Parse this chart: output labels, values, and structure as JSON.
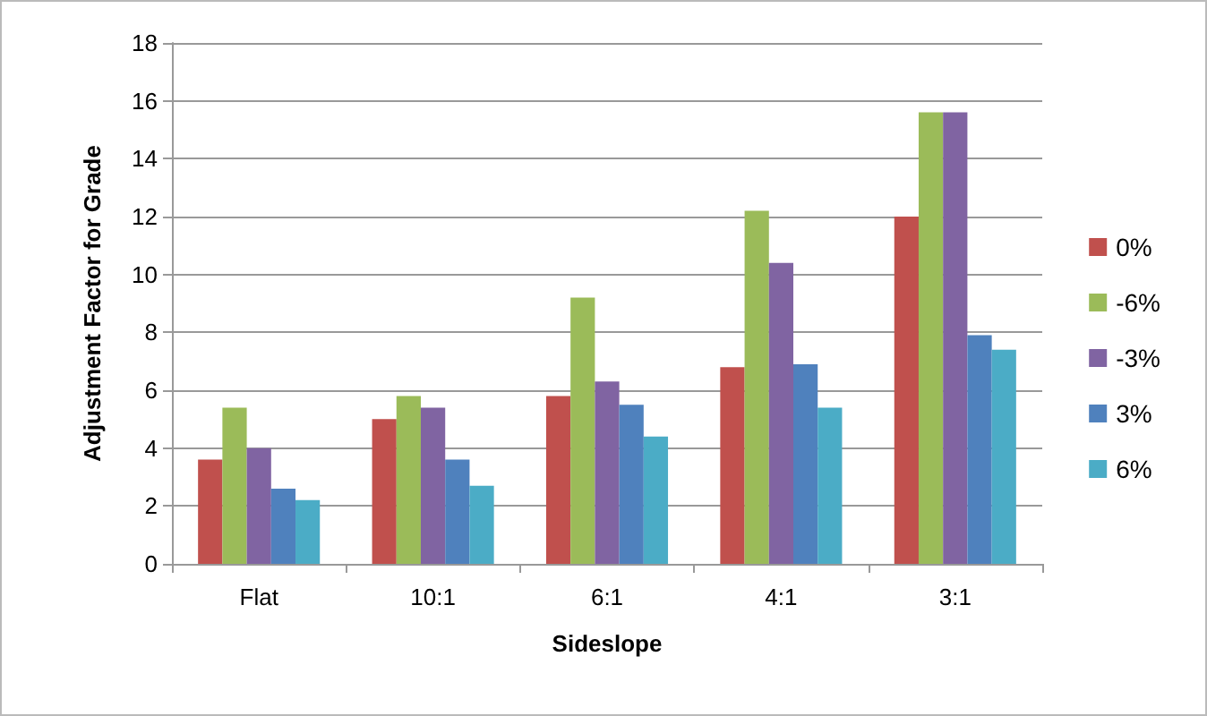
{
  "chart_data": {
    "type": "bar",
    "xlabel": "Sideslope",
    "ylabel": "Adjustment Factor for Grade",
    "categories": [
      "Flat",
      "10:1",
      "6:1",
      "4:1",
      "3:1"
    ],
    "series": [
      {
        "name": "0%",
        "color": "#c0504d",
        "values": [
          3.6,
          5.0,
          5.8,
          6.8,
          12.0
        ]
      },
      {
        "name": "-6%",
        "color": "#9bbb59",
        "values": [
          5.4,
          5.8,
          9.2,
          12.2,
          15.6
        ]
      },
      {
        "name": "-3%",
        "color": "#8064a2",
        "values": [
          4.0,
          5.4,
          6.3,
          10.4,
          15.6
        ]
      },
      {
        "name": "3%",
        "color": "#4f81bd",
        "values": [
          2.6,
          3.6,
          5.5,
          6.9,
          7.9
        ]
      },
      {
        "name": "6%",
        "color": "#4bacc6",
        "values": [
          2.2,
          2.7,
          4.4,
          5.4,
          7.4
        ]
      }
    ],
    "ylim": [
      0,
      18
    ],
    "yticks": [
      0,
      2,
      4,
      6,
      8,
      10,
      12,
      14,
      16,
      18
    ],
    "grid": "y",
    "legend": "right"
  }
}
